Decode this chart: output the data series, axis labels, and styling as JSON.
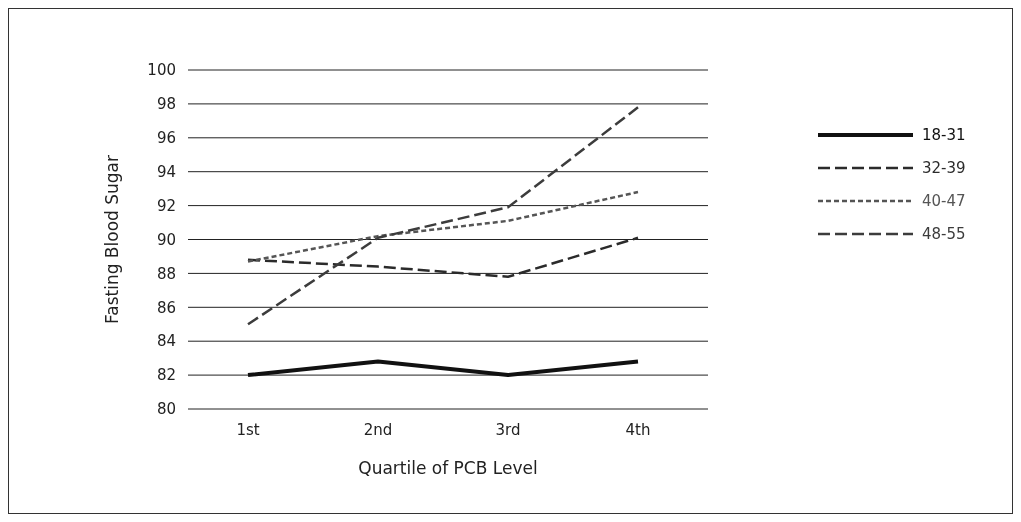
{
  "chart_data": {
    "type": "line",
    "xlabel": "Quartile of PCB Level",
    "ylabel": "Fasting Blood Sugar",
    "categories": [
      "1st",
      "2nd",
      "3rd",
      "4th"
    ],
    "series": [
      {
        "name": "18-31",
        "color": "#111111",
        "line_style": "solid",
        "values": [
          82,
          82.8,
          82,
          82.8
        ]
      },
      {
        "name": "32-39",
        "color": "#2b2b2b",
        "line_style": "dashed",
        "values": [
          88.8,
          88.4,
          87.8,
          90.1
        ]
      },
      {
        "name": "40-47",
        "color": "#555555",
        "line_style": "dotted",
        "values": [
          88.7,
          90.2,
          91.1,
          92.8
        ]
      },
      {
        "name": "48-55",
        "color": "#3c3c3c",
        "line_style": "dashed",
        "values": [
          85,
          90.1,
          91.9,
          97.8
        ]
      }
    ],
    "ylim": [
      80,
      100
    ],
    "yticks": [
      80,
      82,
      84,
      86,
      88,
      90,
      92,
      94,
      96,
      98,
      100
    ],
    "grid": "y",
    "legend": "right"
  }
}
